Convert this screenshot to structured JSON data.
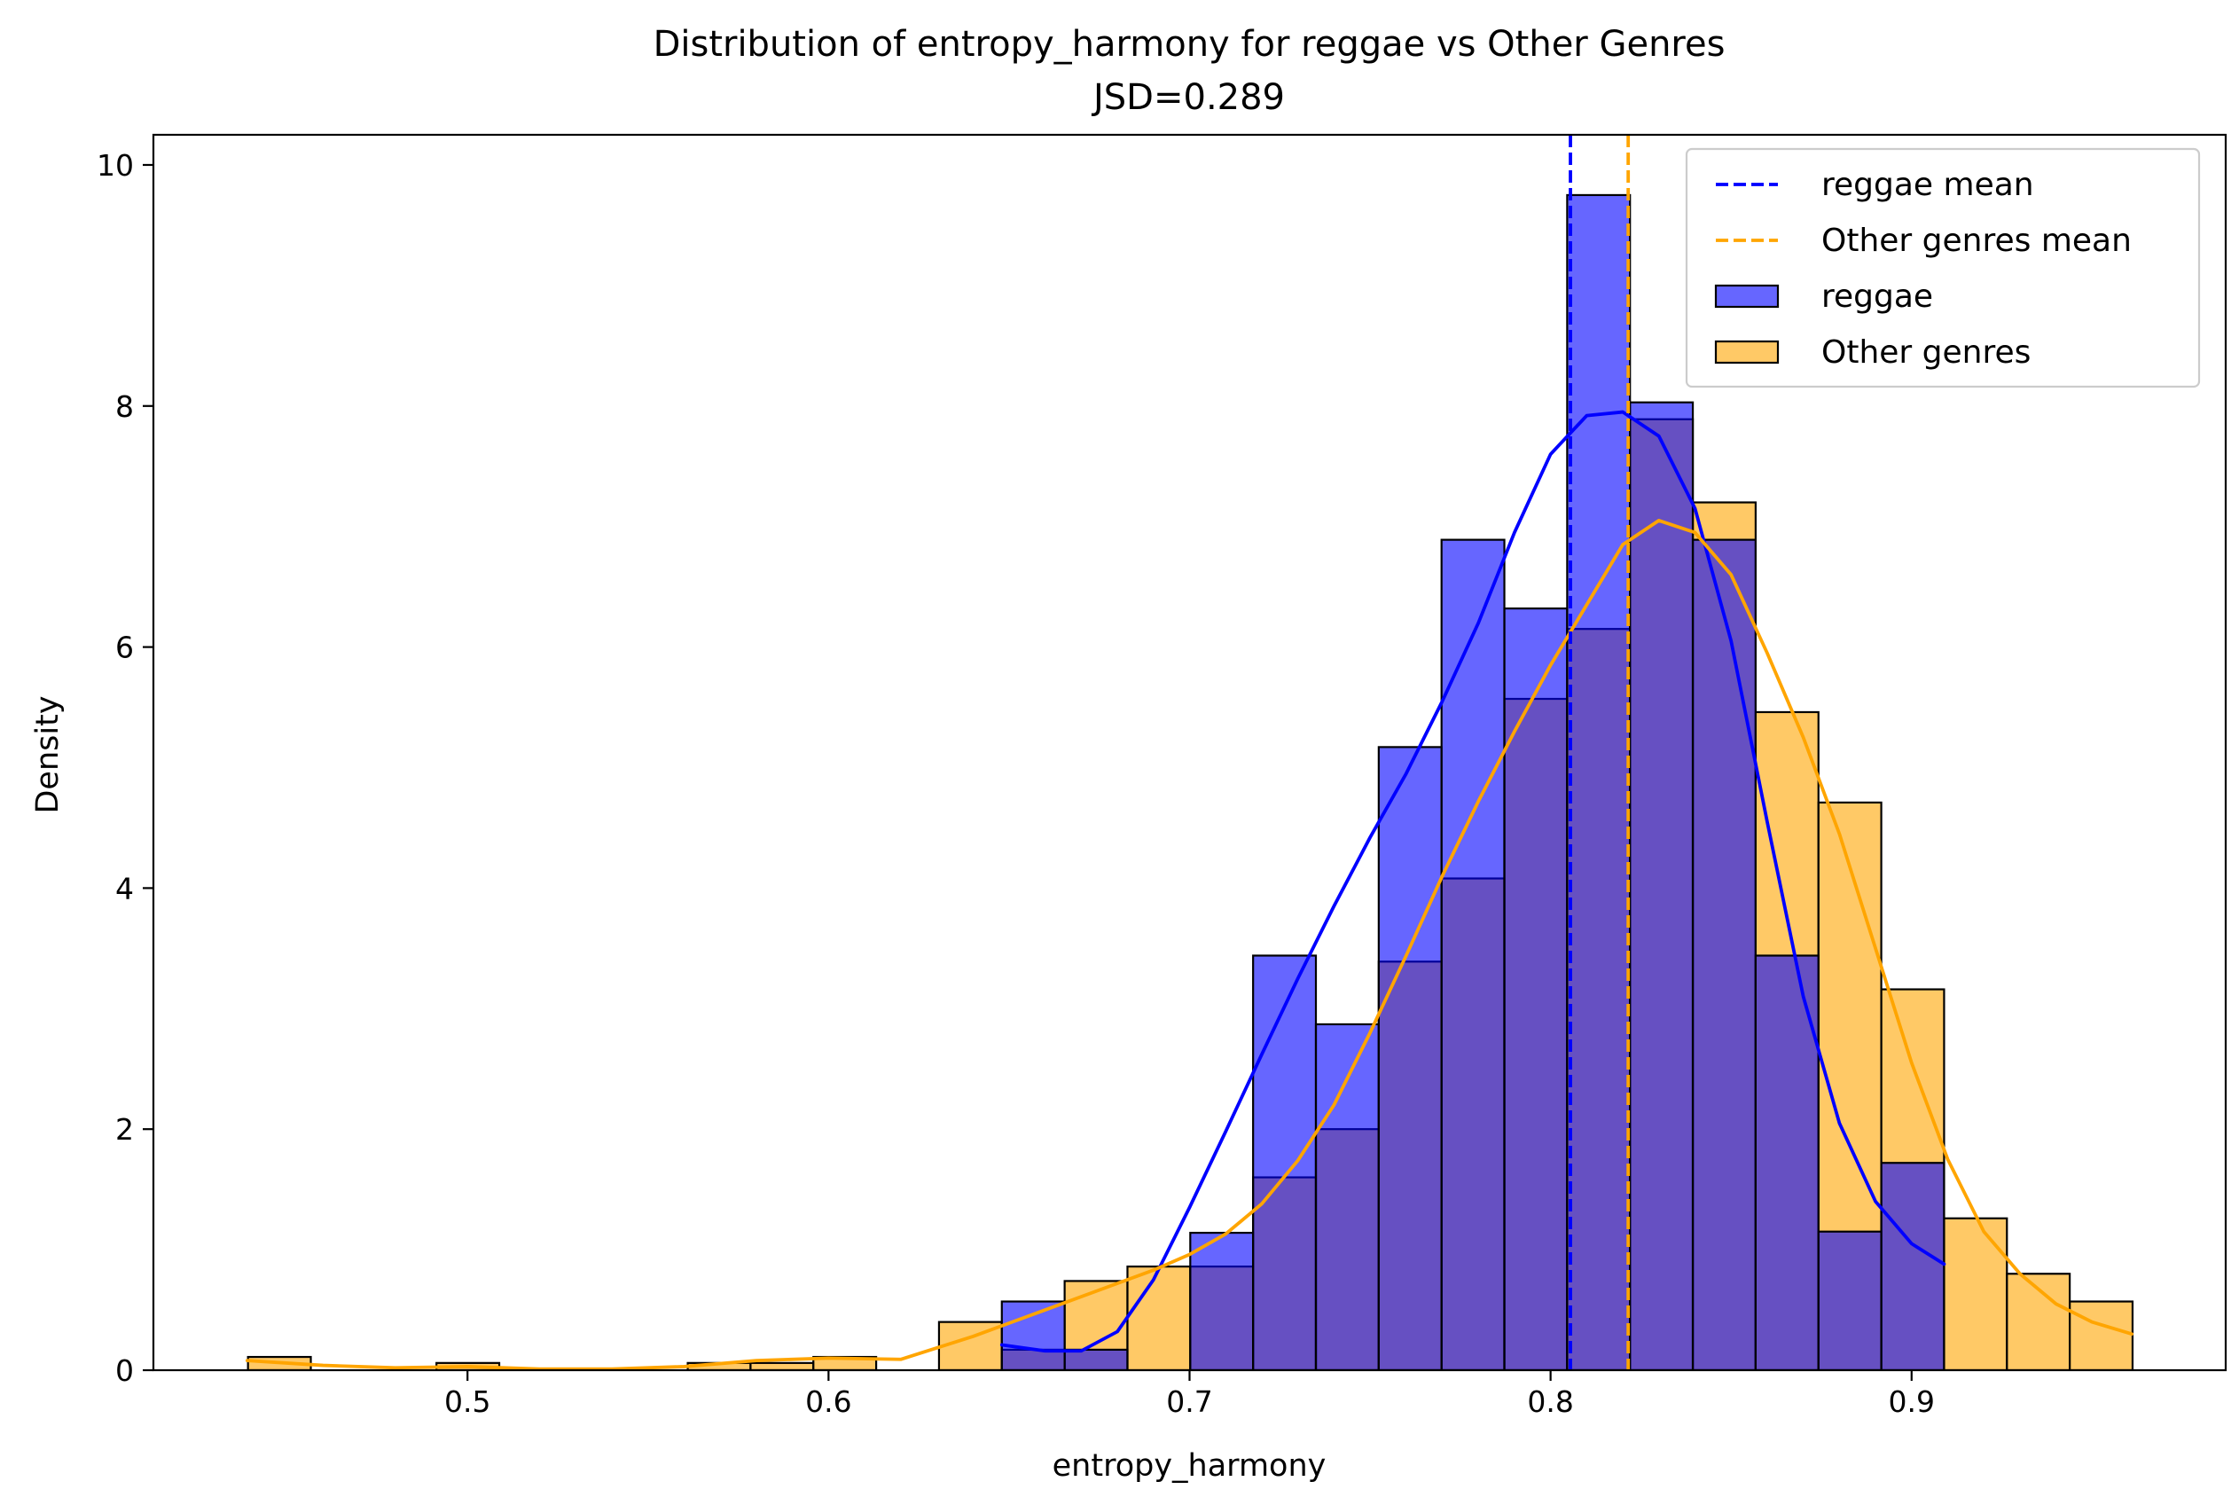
{
  "chart_data": {
    "type": "histogram",
    "title": "Distribution of entropy_harmony for reggae vs Other Genres",
    "subtitle": "JSD=0.289",
    "xlabel": "entropy_harmony",
    "ylabel": "Density",
    "xlim": [
      0.413,
      0.987
    ],
    "ylim": [
      0,
      10.25
    ],
    "xticks": [
      0.5,
      0.6,
      0.7,
      0.8,
      0.9
    ],
    "xtick_labels": [
      "0.5",
      "0.6",
      "0.7",
      "0.8",
      "0.9"
    ],
    "yticks": [
      0,
      2,
      4,
      6,
      8,
      10
    ],
    "ytick_labels": [
      "0",
      "2",
      "4",
      "6",
      "8",
      "10"
    ],
    "grid": false,
    "legend_position": "top-right",
    "bin_edges": [
      0.4392,
      0.4566,
      0.474,
      0.4914,
      0.5088,
      0.5262,
      0.5436,
      0.561,
      0.5784,
      0.5958,
      0.6132,
      0.6306,
      0.648,
      0.6654,
      0.6828,
      0.7002,
      0.7176,
      0.735,
      0.7524,
      0.7698,
      0.7872,
      0.8046,
      0.822,
      0.8394,
      0.8568,
      0.8742,
      0.8916,
      0.909,
      0.9264,
      0.9438,
      0.9612
    ],
    "series": [
      {
        "name": "reggae",
        "kind": "histogram",
        "color": "#0000ff",
        "alpha": 0.6,
        "start_bin": 12,
        "densities": [
          0.57,
          0.17,
          0.0,
          1.14,
          3.44,
          2.87,
          5.17,
          6.89,
          6.32,
          9.75,
          8.03,
          6.89,
          3.44,
          1.15,
          1.72
        ]
      },
      {
        "name": "Other genres",
        "kind": "histogram",
        "color": "#ffa500",
        "alpha": 0.6,
        "start_bin": 0,
        "densities": [
          0.11,
          0.0,
          0.0,
          0.06,
          0.0,
          0.0,
          0.0,
          0.06,
          0.06,
          0.11,
          0.0,
          0.4,
          0.17,
          0.74,
          0.86,
          0.86,
          1.6,
          2.0,
          3.39,
          4.08,
          5.57,
          6.15,
          7.89,
          7.2,
          5.46,
          4.71,
          3.16,
          1.26,
          0.8,
          0.57
        ]
      }
    ],
    "kde": [
      {
        "name": "reggae",
        "color": "#0000ff",
        "x": [
          0.648,
          0.66,
          0.67,
          0.68,
          0.69,
          0.7,
          0.71,
          0.72,
          0.73,
          0.74,
          0.75,
          0.76,
          0.77,
          0.78,
          0.79,
          0.8,
          0.81,
          0.82,
          0.83,
          0.84,
          0.85,
          0.86,
          0.87,
          0.88,
          0.89,
          0.9,
          0.909
        ],
        "y": [
          0.21,
          0.16,
          0.16,
          0.32,
          0.75,
          1.35,
          1.98,
          2.62,
          3.25,
          3.85,
          4.42,
          4.95,
          5.55,
          6.2,
          6.95,
          7.6,
          7.92,
          7.95,
          7.75,
          7.15,
          6.05,
          4.55,
          3.1,
          2.05,
          1.4,
          1.05,
          0.88
        ]
      },
      {
        "name": "Other genres",
        "color": "#ffa500",
        "x": [
          0.439,
          0.46,
          0.48,
          0.5,
          0.52,
          0.54,
          0.56,
          0.58,
          0.6,
          0.62,
          0.64,
          0.66,
          0.68,
          0.69,
          0.7,
          0.71,
          0.72,
          0.73,
          0.74,
          0.75,
          0.76,
          0.77,
          0.78,
          0.79,
          0.8,
          0.81,
          0.82,
          0.83,
          0.84,
          0.85,
          0.86,
          0.87,
          0.88,
          0.89,
          0.9,
          0.91,
          0.92,
          0.93,
          0.94,
          0.95,
          0.961
        ],
        "y": [
          0.08,
          0.04,
          0.02,
          0.03,
          0.01,
          0.01,
          0.03,
          0.08,
          0.1,
          0.09,
          0.28,
          0.5,
          0.72,
          0.83,
          0.96,
          1.13,
          1.38,
          1.74,
          2.2,
          2.8,
          3.44,
          4.1,
          4.72,
          5.3,
          5.85,
          6.35,
          6.85,
          7.05,
          6.95,
          6.6,
          5.95,
          5.25,
          4.45,
          3.5,
          2.55,
          1.75,
          1.15,
          0.8,
          0.55,
          0.4,
          0.3
        ]
      }
    ],
    "mean_lines": [
      {
        "name": "reggae mean",
        "x": 0.8055,
        "color": "#0000ff",
        "style": "dashed"
      },
      {
        "name": "Other genres mean",
        "x": 0.8215,
        "color": "#ffa500",
        "style": "dashed"
      }
    ],
    "legend": [
      {
        "label": "reggae mean",
        "kind": "line",
        "color": "#0000ff"
      },
      {
        "label": "Other genres mean",
        "kind": "line",
        "color": "#ffa500"
      },
      {
        "label": "reggae",
        "kind": "patch",
        "color": "#0000ff"
      },
      {
        "label": "Other genres",
        "kind": "patch",
        "color": "#ffa500"
      }
    ]
  }
}
